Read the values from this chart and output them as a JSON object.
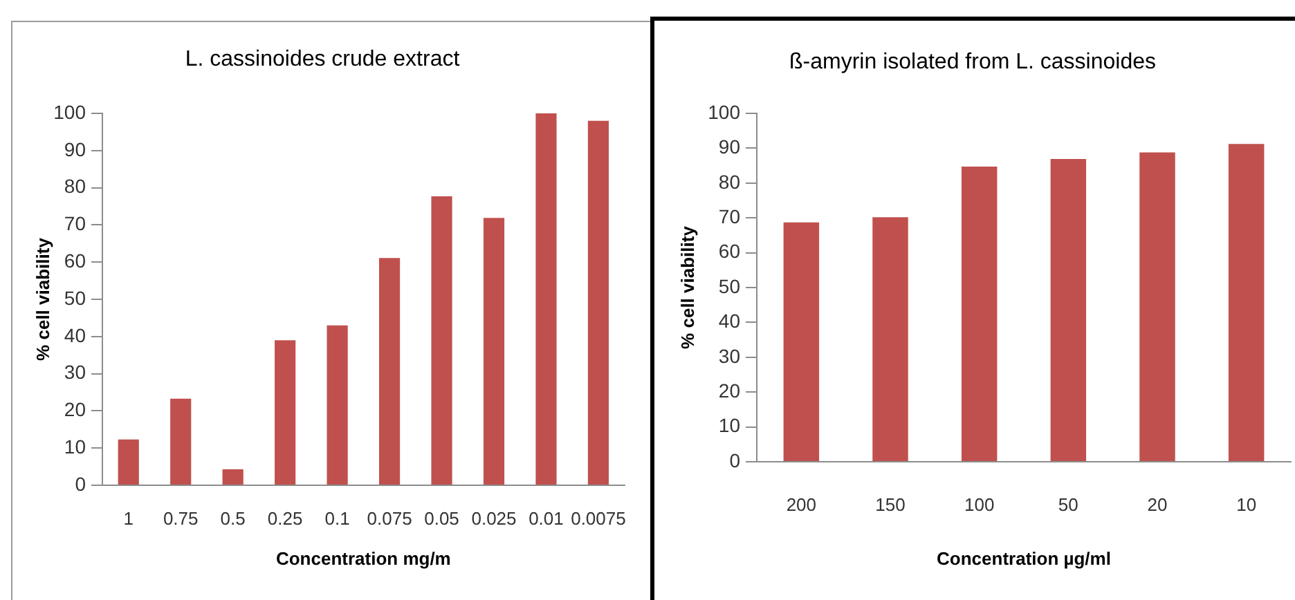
{
  "chart_data": [
    {
      "type": "bar",
      "title": "L. cassinoides crude extract",
      "xlabel": "Concentration mg/m",
      "ylabel": "% cell viability",
      "categories": [
        "1",
        "0.75",
        "0.5",
        "0.25",
        "0.1",
        "0.075",
        "0.05",
        "0.025",
        "0.01",
        "0.0075"
      ],
      "values": [
        12.3,
        23.3,
        4.3,
        39,
        43,
        61.1,
        77.7,
        71.9,
        100,
        98
      ],
      "color": "#c0504d",
      "ylim": [
        0,
        100
      ],
      "yticks": [
        0,
        10,
        20,
        30,
        40,
        50,
        60,
        70,
        80,
        90,
        100
      ]
    },
    {
      "type": "bar",
      "title": "ß-amyrin isolated from L. cassinoides",
      "xlabel": "Concentration µg/ml",
      "ylabel": "% cell viability",
      "categories": [
        "200",
        "150",
        "100",
        "50",
        "20",
        "10"
      ],
      "values": [
        68.7,
        70.2,
        84.7,
        86.9,
        88.8,
        91.2
      ],
      "color": "#c0504d",
      "ylim": [
        0,
        100
      ],
      "yticks": [
        0,
        10,
        20,
        30,
        40,
        50,
        60,
        70,
        80,
        90,
        100
      ]
    }
  ]
}
